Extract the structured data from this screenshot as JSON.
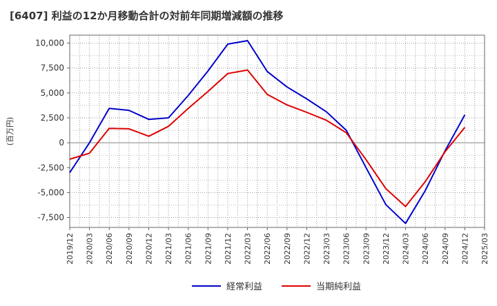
{
  "chart_data": {
    "type": "line",
    "title": "[6407]  利益の12か月移動合計の対前年同期増減額の推移",
    "ylabel": "(百万円)",
    "xlabel": "",
    "ylim": [
      -8500,
      10800
    ],
    "yticks": [
      10000,
      7500,
      5000,
      2500,
      0,
      -2500,
      -5000,
      -7500
    ],
    "ytick_labels": [
      "10,000",
      "7,500",
      "5,000",
      "2,500",
      "0",
      "-2,500",
      "-5,000",
      "-7,500"
    ],
    "categories": [
      "2019/12",
      "2020/03",
      "2020/06",
      "2020/09",
      "2020/12",
      "2021/03",
      "2021/06",
      "2021/09",
      "2021/12",
      "2022/03",
      "2022/06",
      "2022/09",
      "2022/12",
      "2023/03",
      "2023/06",
      "2023/09",
      "2023/12",
      "2024/03",
      "2024/06",
      "2024/09",
      "2024/12",
      "2025/03"
    ],
    "series": [
      {
        "name": "経常利益",
        "color": "#0000cc",
        "values": [
          -3000,
          0,
          3450,
          3250,
          2350,
          2500,
          4750,
          7200,
          9900,
          10250,
          7150,
          5600,
          4400,
          3100,
          1250,
          -2500,
          -6200,
          -8100,
          -4800,
          -800,
          2800,
          null
        ]
      },
      {
        "name": "当期純利益",
        "color": "#dd0000",
        "values": [
          -1650,
          -1050,
          1450,
          1400,
          650,
          1650,
          3450,
          5150,
          6950,
          7300,
          4850,
          3800,
          3050,
          2250,
          1000,
          -1700,
          -4600,
          -6400,
          -3900,
          -900,
          1550,
          null
        ]
      }
    ],
    "legend_position": "bottom-center",
    "grid": true
  }
}
